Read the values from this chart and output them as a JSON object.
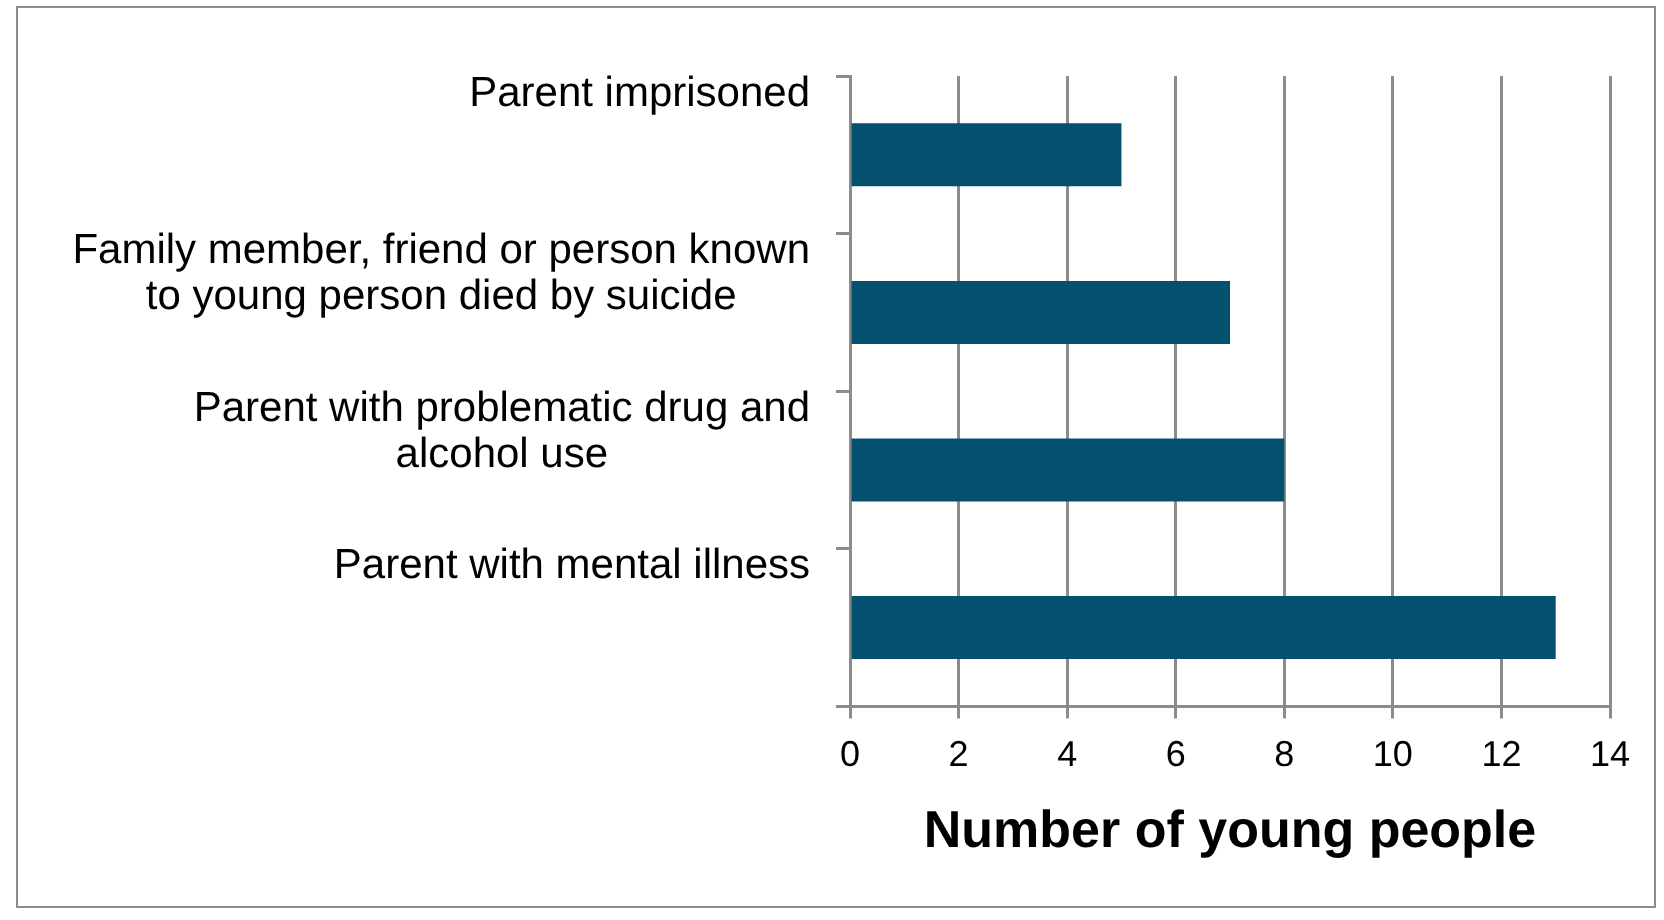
{
  "chart_data": {
    "type": "bar",
    "orientation": "horizontal",
    "categories": [
      "Parent imprisoned",
      "Family member, friend or person known to young person died by suicide",
      "Parent with problematic drug and alcohol use",
      "Parent with mental illness"
    ],
    "values": [
      5,
      7,
      8,
      13
    ],
    "color": "#03506f",
    "xlabel": "Number of young people",
    "xlim": [
      0,
      14
    ],
    "xticks": [
      0,
      2,
      4,
      6,
      8,
      10,
      12,
      14
    ],
    "grid": "x"
  }
}
